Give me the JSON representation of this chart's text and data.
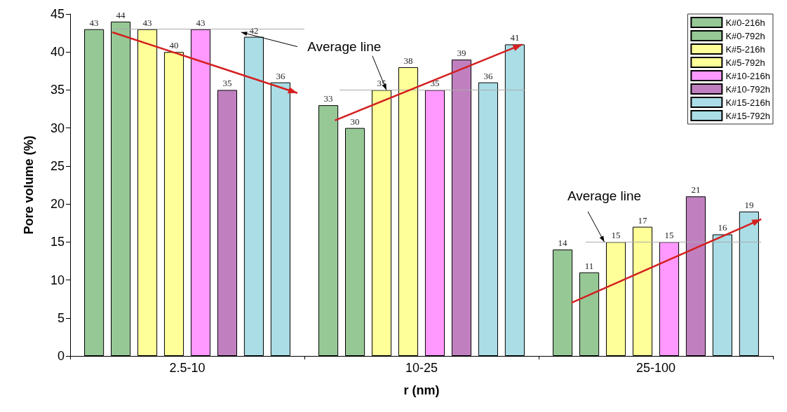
{
  "chart_data": {
    "type": "bar",
    "xlabel": "r (nm)",
    "ylabel": "Pore volume (%)",
    "categories": [
      "2.5-10",
      "10-25",
      "25-100"
    ],
    "series": [
      {
        "name": "K#0-216h",
        "color": "#96c896",
        "values": [
          43,
          33,
          14
        ]
      },
      {
        "name": "K#0-792h",
        "color": "#96c896",
        "values": [
          44,
          30,
          11
        ]
      },
      {
        "name": "K#5-216h",
        "color": "#ffff99",
        "values": [
          43,
          35,
          15
        ]
      },
      {
        "name": "K#5-792h",
        "color": "#ffff99",
        "values": [
          40,
          38,
          17
        ]
      },
      {
        "name": "K#10-216h",
        "color": "#ff99ff",
        "values": [
          43,
          35,
          15
        ]
      },
      {
        "name": "K#10-792h",
        "color": "#c080c0",
        "values": [
          35,
          39,
          21
        ]
      },
      {
        "name": "K#15-216h",
        "color": "#aadde5",
        "values": [
          42,
          36,
          16
        ]
      },
      {
        "name": "K#15-792h",
        "color": "#aadde5",
        "values": [
          36,
          41,
          19
        ]
      }
    ],
    "ylim": [
      0,
      45
    ],
    "yticks": [
      0,
      5,
      10,
      15,
      20,
      25,
      30,
      35,
      40,
      45
    ],
    "ref_lines": [
      {
        "axis": "y",
        "value": 43,
        "label": null,
        "color": "#aaaaaa"
      },
      {
        "axis": "y",
        "value": 35,
        "label": null,
        "color": "#aaaaaa"
      },
      {
        "axis": "y",
        "value": 15,
        "label": null,
        "color": "#aaaaaa"
      }
    ],
    "annotations": [
      {
        "text": "Average line",
        "y": 35
      },
      {
        "text": "Average line",
        "y": 15
      }
    ],
    "data_labels": true,
    "grid": false,
    "legend": "top right"
  }
}
